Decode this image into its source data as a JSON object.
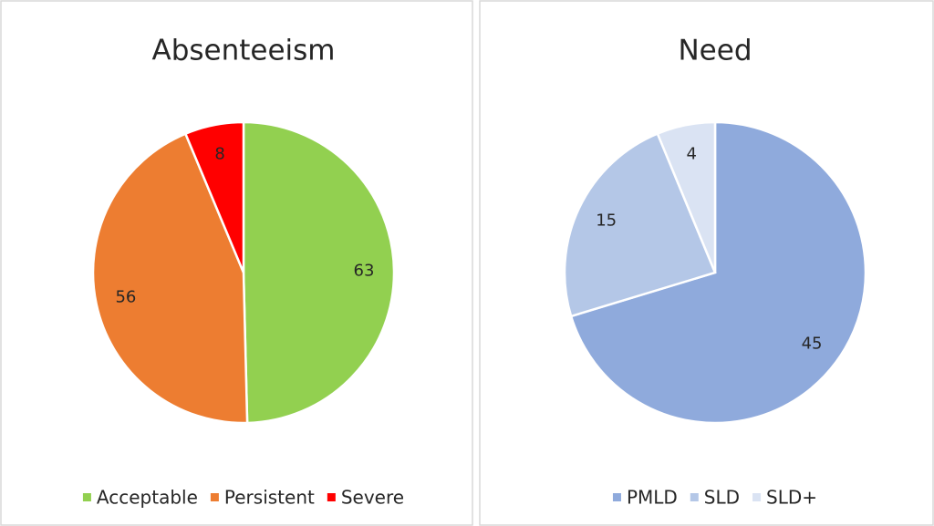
{
  "chart_data": [
    {
      "type": "pie",
      "title": "Absenteeism",
      "categories": [
        "Acceptable",
        "Persistent",
        "Severe"
      ],
      "values": [
        63,
        56,
        8
      ],
      "colors": [
        "#92d050",
        "#ed7d31",
        "#ff0000"
      ],
      "legend": "bottom"
    },
    {
      "type": "pie",
      "title": "Need",
      "categories": [
        "PMLD",
        "SLD",
        "SLD+"
      ],
      "values": [
        45,
        15,
        4
      ],
      "colors": [
        "#8faadc",
        "#b4c7e7",
        "#dae3f3"
      ],
      "legend": "bottom"
    }
  ]
}
